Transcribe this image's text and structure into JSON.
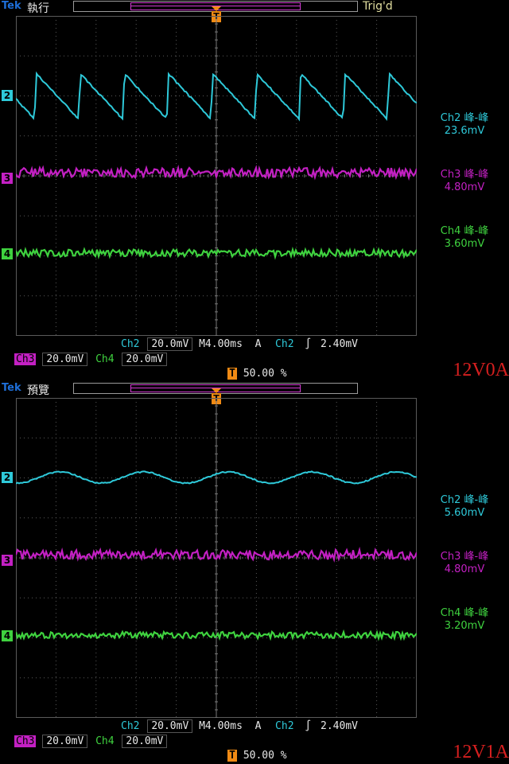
{
  "panels": [
    {
      "brand": "Tek",
      "state": "執行",
      "trig_status": "Trig'd",
      "trig_marker": "T",
      "ch_markers": [
        "2",
        "3",
        "4"
      ],
      "measurements": [
        {
          "label": "Ch2 峰-峰",
          "value": "23.6mV"
        },
        {
          "label": "Ch3 峰-峰",
          "value": "4.80mV"
        },
        {
          "label": "Ch4 峰-峰",
          "value": "3.60mV"
        }
      ],
      "status": {
        "ch2": "Ch2",
        "ch2_scale": "20.0mV",
        "timebase": "M4.00ms",
        "trig_mode": "A",
        "trig_src": "Ch2",
        "trig_slope": "∫",
        "trig_level": "2.40mV",
        "ch3": "Ch3",
        "ch3_scale": "20.0mV",
        "ch4": "Ch4",
        "ch4_scale": "20.0mV",
        "trig_pos": "50.00 %"
      },
      "waves": {
        "ch2": {
          "type": "sawtooth",
          "ptp_mv": 23.6,
          "period_div": 1.1
        },
        "ch3": {
          "type": "flat",
          "ptp_mv": 4.8
        },
        "ch4": {
          "type": "flat",
          "ptp_mv": 3.6
        }
      },
      "annotation": "12V0A"
    },
    {
      "brand": "Tek",
      "state": "預覽",
      "trig_status": "",
      "trig_marker": "T",
      "ch_markers": [
        "2",
        "3",
        "4"
      ],
      "measurements": [
        {
          "label": "Ch2 峰-峰",
          "value": "5.60mV"
        },
        {
          "label": "Ch3 峰-峰",
          "value": "4.80mV"
        },
        {
          "label": "Ch4 峰-峰",
          "value": "3.20mV"
        }
      ],
      "status": {
        "ch2": "Ch2",
        "ch2_scale": "20.0mV",
        "timebase": "M4.00ms",
        "trig_mode": "A",
        "trig_src": "Ch2",
        "trig_slope": "∫",
        "trig_level": "2.40mV",
        "ch3": "Ch3",
        "ch3_scale": "20.0mV",
        "ch4": "Ch4",
        "ch4_scale": "20.0mV",
        "trig_pos": "50.00 %"
      },
      "waves": {
        "ch2": {
          "type": "sine",
          "ptp_mv": 5.6,
          "period_div": 2.1
        },
        "ch3": {
          "type": "flat",
          "ptp_mv": 4.8
        },
        "ch4": {
          "type": "flat",
          "ptp_mv": 3.2
        }
      },
      "annotation": "12V1A"
    }
  ],
  "colors": {
    "ch2": "#2ec9d9",
    "ch3": "#c320c3",
    "ch4": "#3fd23f",
    "grid": "#5a5a5a",
    "trigger": "#f08a14",
    "annotation": "#d61f1f"
  }
}
